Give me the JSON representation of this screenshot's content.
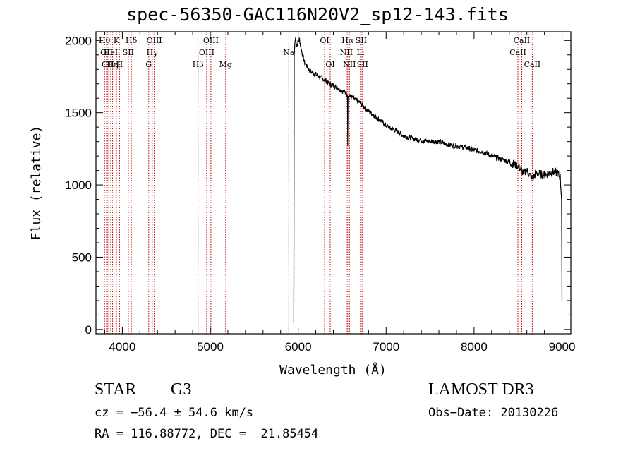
{
  "chart_data": {
    "type": "line",
    "title": "spec-56350-GAC116N20V2_sp12-143.fits",
    "xlabel": "Wavelength (Å)",
    "ylabel": "Flux (relative)",
    "xlim": [
      3700,
      9100
    ],
    "ylim": [
      -30,
      2060
    ],
    "x_ticks": [
      4000,
      5000,
      6000,
      7000,
      8000,
      9000
    ],
    "y_ticks": [
      0,
      500,
      1000,
      1500,
      2000
    ],
    "x_tick_labels": [
      "4000",
      "5000",
      "6000",
      "7000",
      "8000",
      "9000"
    ],
    "y_tick_labels": [
      "0",
      "500",
      "1000",
      "1500",
      "2000"
    ],
    "series": [
      {
        "name": "flux",
        "points": [
          [
            5950,
            50
          ],
          [
            5955,
            1900
          ],
          [
            5962,
            1980
          ],
          [
            5970,
            2020
          ],
          [
            5985,
            1960
          ],
          [
            6000,
            1990
          ],
          [
            6015,
            2010
          ],
          [
            6030,
            1950
          ],
          [
            6050,
            1900
          ],
          [
            6070,
            1850
          ],
          [
            6090,
            1830
          ],
          [
            6120,
            1800
          ],
          [
            6150,
            1780
          ],
          [
            6180,
            1770
          ],
          [
            6220,
            1760
          ],
          [
            6260,
            1740
          ],
          [
            6300,
            1730
          ],
          [
            6350,
            1700
          ],
          [
            6400,
            1690
          ],
          [
            6450,
            1670
          ],
          [
            6500,
            1650
          ],
          [
            6540,
            1640
          ],
          [
            6560,
            1620
          ],
          [
            6563,
            1270
          ],
          [
            6566,
            1620
          ],
          [
            6600,
            1610
          ],
          [
            6650,
            1590
          ],
          [
            6700,
            1570
          ],
          [
            6750,
            1540
          ],
          [
            6800,
            1510
          ],
          [
            6850,
            1490
          ],
          [
            6900,
            1460
          ],
          [
            6950,
            1440
          ],
          [
            7000,
            1410
          ],
          [
            7050,
            1390
          ],
          [
            7100,
            1380
          ],
          [
            7150,
            1360
          ],
          [
            7200,
            1340
          ],
          [
            7300,
            1320
          ],
          [
            7400,
            1310
          ],
          [
            7500,
            1300
          ],
          [
            7600,
            1300
          ],
          [
            7700,
            1280
          ],
          [
            7800,
            1270
          ],
          [
            7900,
            1260
          ],
          [
            8000,
            1240
          ],
          [
            8100,
            1230
          ],
          [
            8200,
            1200
          ],
          [
            8300,
            1180
          ],
          [
            8400,
            1160
          ],
          [
            8500,
            1130
          ],
          [
            8540,
            1100
          ],
          [
            8560,
            1080
          ],
          [
            8600,
            1100
          ],
          [
            8660,
            1040
          ],
          [
            8700,
            1080
          ],
          [
            8800,
            1070
          ],
          [
            8900,
            1090
          ],
          [
            8950,
            1080
          ],
          [
            8980,
            1050
          ],
          [
            8995,
            900
          ],
          [
            9000,
            200
          ]
        ]
      }
    ],
    "line_markers": [
      {
        "wavelength": 3798,
        "label": "Hθ",
        "row": 0
      },
      {
        "wavelength": 3820,
        "label": "OII",
        "row": 1
      },
      {
        "wavelength": 3835,
        "label": "OII",
        "row": 2
      },
      {
        "wavelength": 3889,
        "label": "Hη",
        "row": 2
      },
      {
        "wavelength": 3869,
        "label": "HeI",
        "row": 1
      },
      {
        "wavelength": 3933,
        "label": "K",
        "row": 0
      },
      {
        "wavelength": 3968,
        "label": "H",
        "row": 2
      },
      {
        "wavelength": 4068,
        "label": "SII",
        "row": 1
      },
      {
        "wavelength": 4102,
        "label": "Hδ",
        "row": 0
      },
      {
        "wavelength": 4300,
        "label": "G",
        "row": 2
      },
      {
        "wavelength": 4340,
        "label": "Hγ",
        "row": 1
      },
      {
        "wavelength": 4363,
        "label": "OIII",
        "row": 0
      },
      {
        "wavelength": 4861,
        "label": "Hβ",
        "row": 2
      },
      {
        "wavelength": 4959,
        "label": "OIII",
        "row": 1
      },
      {
        "wavelength": 5007,
        "label": "OIII",
        "row": 0
      },
      {
        "wavelength": 5175,
        "label": "Mg",
        "row": 2
      },
      {
        "wavelength": 5893,
        "label": "Na",
        "row": 1
      },
      {
        "wavelength": 6300,
        "label": "OI",
        "row": 0
      },
      {
        "wavelength": 6364,
        "label": "OI",
        "row": 2
      },
      {
        "wavelength": 6548,
        "label": "NII",
        "row": 1
      },
      {
        "wavelength": 6563,
        "label": "Hα",
        "row": 0
      },
      {
        "wavelength": 6583,
        "label": "NII",
        "row": 2
      },
      {
        "wavelength": 6708,
        "label": "Li",
        "row": 1
      },
      {
        "wavelength": 6716,
        "label": "SII",
        "row": 0
      },
      {
        "wavelength": 6731,
        "label": "SII",
        "row": 2
      },
      {
        "wavelength": 8498,
        "label": "CaII",
        "row": 1
      },
      {
        "wavelength": 8542,
        "label": "CaII",
        "row": 0
      },
      {
        "wavelength": 8662,
        "label": "CaII",
        "row": 2
      }
    ]
  },
  "info": {
    "object_class": "STAR",
    "subclass": "G3",
    "survey": "LAMOST DR3",
    "cz": "cz = −56.4 ± 54.6 km/s",
    "obs_date": "Obs−Date: 20130226",
    "coords": "RA = 116.88772, DEC =  21.85454"
  }
}
